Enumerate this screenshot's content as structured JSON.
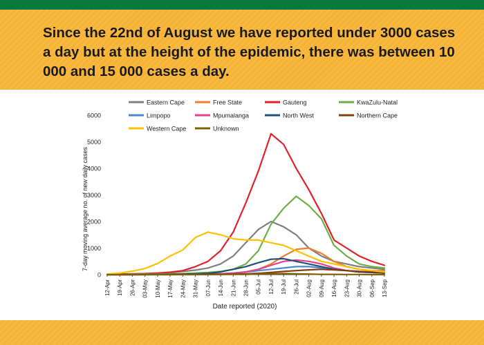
{
  "headline": "Since the 22nd of August we have reported under 3000 cases a day but at the height of the epidemic, there was between 10 000 and 15 000 cases a day.",
  "chart_data": {
    "type": "line",
    "xlabel": "Date reported (2020)",
    "ylabel": "7-day moving average no. of new daily cases",
    "ylim": [
      0,
      6000
    ],
    "yticks": [
      "0",
      "1000",
      "2000",
      "3000",
      "4000",
      "5000",
      "6000"
    ],
    "categories": [
      "12-Apr",
      "19-Apr",
      "26-Apr",
      "03-May",
      "10-May",
      "17-May",
      "24-May",
      "31-May",
      "07-Jun",
      "14-Jun",
      "21-Jun",
      "28-Jun",
      "05-Jul",
      "12-Jul",
      "19-Jul",
      "26-Jul",
      "02-Aug",
      "09-Aug",
      "16-Aug",
      "23-Aug",
      "30-Aug",
      "06-Sep",
      "13-Sep"
    ],
    "legend_position": "top",
    "grid": false,
    "series": [
      {
        "name": "Eastern Cape",
        "color": "#7f7f7f",
        "values": [
          0,
          5,
          10,
          20,
          40,
          80,
          120,
          170,
          250,
          400,
          700,
          1200,
          1700,
          2000,
          1800,
          1500,
          1000,
          700,
          500,
          400,
          300,
          250,
          200
        ]
      },
      {
        "name": "Free State",
        "color": "#ed7d31",
        "values": [
          0,
          0,
          0,
          5,
          5,
          10,
          10,
          15,
          20,
          30,
          60,
          100,
          200,
          400,
          700,
          950,
          1000,
          800,
          500,
          300,
          200,
          150,
          150
        ]
      },
      {
        "name": "Gauteng",
        "color": "#e02128",
        "values": [
          10,
          20,
          30,
          40,
          60,
          90,
          150,
          300,
          500,
          900,
          1600,
          2700,
          3900,
          5300,
          4900,
          4000,
          3200,
          2300,
          1300,
          1000,
          700,
          500,
          350
        ]
      },
      {
        "name": "KwaZulu-Natal",
        "color": "#70ad47",
        "values": [
          5,
          10,
          15,
          20,
          25,
          30,
          40,
          60,
          80,
          120,
          200,
          400,
          900,
          1900,
          2500,
          2950,
          2600,
          2100,
          1100,
          700,
          400,
          300,
          250
        ]
      },
      {
        "name": "Limpopo",
        "color": "#4a86d6",
        "values": [
          0,
          0,
          0,
          0,
          5,
          5,
          10,
          10,
          20,
          30,
          60,
          100,
          150,
          200,
          250,
          300,
          300,
          250,
          200,
          150,
          100,
          80,
          60
        ]
      },
      {
        "name": "Mpumalanga",
        "color": "#e83e8c",
        "values": [
          0,
          0,
          0,
          0,
          5,
          5,
          10,
          10,
          20,
          30,
          50,
          100,
          200,
          350,
          500,
          550,
          500,
          400,
          250,
          150,
          100,
          80,
          60
        ]
      },
      {
        "name": "North West",
        "color": "#1f4e79",
        "values": [
          0,
          0,
          0,
          5,
          5,
          10,
          20,
          30,
          50,
          100,
          200,
          300,
          450,
          580,
          600,
          500,
          400,
          300,
          200,
          150,
          100,
          80,
          60
        ]
      },
      {
        "name": "Northern Cape",
        "color": "#843c0c",
        "values": [
          0,
          0,
          0,
          0,
          0,
          0,
          5,
          5,
          10,
          10,
          20,
          30,
          50,
          80,
          120,
          150,
          180,
          200,
          180,
          150,
          120,
          100,
          80
        ]
      },
      {
        "name": "Western Cape",
        "color": "#ffc000",
        "values": [
          20,
          60,
          130,
          230,
          420,
          700,
          930,
          1400,
          1600,
          1500,
          1350,
          1300,
          1300,
          1200,
          1100,
          900,
          700,
          500,
          400,
          300,
          200,
          150,
          100
        ]
      },
      {
        "name": "Unknown",
        "color": "#7f6000",
        "values": [
          0,
          0,
          0,
          0,
          0,
          0,
          0,
          0,
          5,
          5,
          10,
          10,
          20,
          30,
          40,
          30,
          20,
          10,
          10,
          5,
          5,
          0,
          0
        ]
      }
    ]
  }
}
